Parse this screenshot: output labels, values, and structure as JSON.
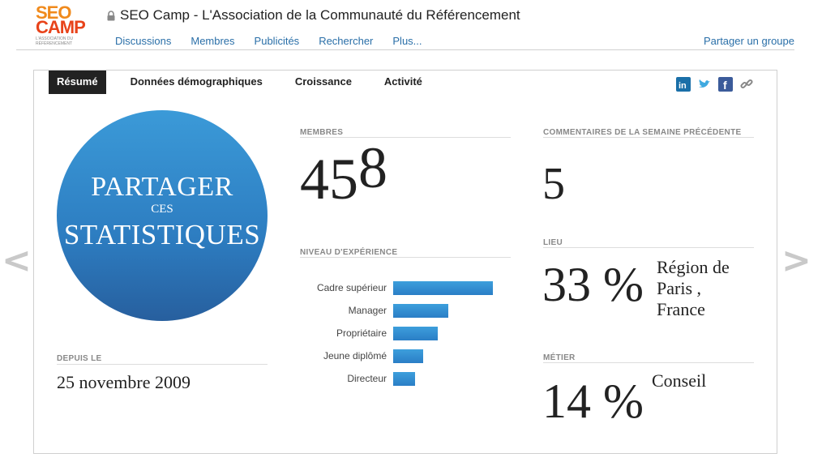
{
  "header": {
    "logo": {
      "line1": "SEO",
      "line2": "CAMP",
      "line3": "L'ASSOCIATION DU RÉFÉRENCEMENT"
    },
    "group_title": "SEO Camp - L'Association de la Communauté du Référencement",
    "nav": [
      "Discussions",
      "Membres",
      "Publicités",
      "Rechercher",
      "Plus..."
    ],
    "share_group": "Partager un groupe"
  },
  "tabs": [
    "Résumé",
    "Données démographiques",
    "Croissance",
    "Activité"
  ],
  "social_icons": [
    "linkedin-icon",
    "twitter-icon",
    "facebook-icon",
    "link-icon"
  ],
  "share_stats": {
    "line1": "PARTAGER",
    "line2": "CES",
    "line3": "STATISTIQUES"
  },
  "since": {
    "label": "DEPUIS LE",
    "value": "25 novembre 2009"
  },
  "members": {
    "label": "MEMBRES",
    "value_main": "45",
    "value_sup": "8"
  },
  "experience": {
    "label": "NIVEAU D'EXPÉRIENCE",
    "items": [
      {
        "label": "Cadre supérieur",
        "share": 1.0
      },
      {
        "label": "Manager",
        "share": 0.55
      },
      {
        "label": "Propriétaire",
        "share": 0.45
      },
      {
        "label": "Jeune diplômé",
        "share": 0.3
      },
      {
        "label": "Directeur",
        "share": 0.22
      }
    ]
  },
  "comments": {
    "label": "COMMENTAIRES DE LA SEMAINE PRÉCÉDENTE",
    "value": "5"
  },
  "location": {
    "label": "LIEU",
    "percent": "33 %",
    "name": "Région de Paris , France"
  },
  "job": {
    "label": "MÉTIER",
    "percent": "14 %",
    "name": "Conseil"
  },
  "nav_arrows": {
    "prev": "<",
    "next": ">"
  },
  "colors": {
    "link": "#2a6fa8",
    "bar": "#2a7ec6",
    "circle": "#2d7dc1",
    "tab_active": "#222222"
  }
}
